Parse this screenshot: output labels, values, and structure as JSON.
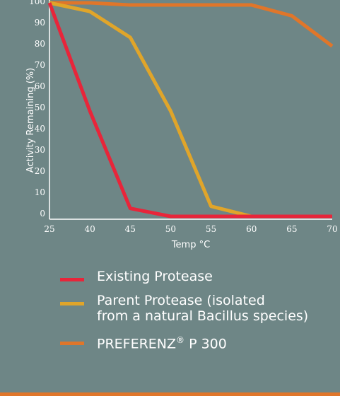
{
  "chart_data": {
    "type": "line",
    "xlabel": "Temp °C",
    "ylabel": "Activity Remaining (%)",
    "x_ticks": [
      "25",
      "40",
      "45",
      "50",
      "55",
      "60",
      "65",
      "70"
    ],
    "y_ticks": [
      "0",
      "10",
      "20",
      "30",
      "40",
      "50",
      "60",
      "70",
      "80",
      "90",
      "100"
    ],
    "ylim": [
      0,
      100
    ],
    "grid": false,
    "series": [
      {
        "name": "Existing Protease",
        "color": "#e8253a",
        "values": [
          100,
          50,
          5,
          0,
          0,
          0,
          0,
          0
        ]
      },
      {
        "name": "Parent Protease (isolated\nfrom a natural Bacillus species)",
        "color": "#e0a52a",
        "values": [
          100,
          96,
          84,
          50,
          6,
          0,
          0,
          0
        ]
      },
      {
        "name": "PREFERENZ® P 300",
        "color": "#e0762a",
        "values": [
          100,
          100,
          99,
          99,
          99,
          99,
          94,
          80
        ]
      }
    ]
  },
  "legend": [
    {
      "label": "Existing Protease",
      "color": "#e8253a"
    },
    {
      "label": "Parent Protease (isolated\nfrom a natural Bacillus species)",
      "color": "#e0a52a"
    },
    {
      "label_main": "PREFERENZ",
      "label_sup": "®",
      "label_rest": " P 300",
      "color": "#e0762a"
    }
  ]
}
